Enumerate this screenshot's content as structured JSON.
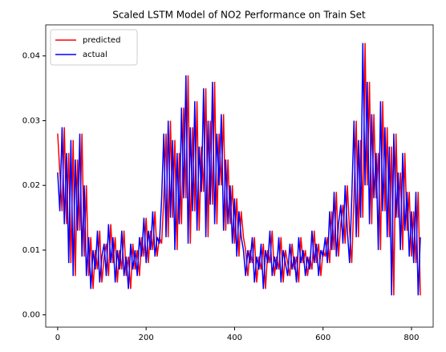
{
  "chart_data": {
    "type": "line",
    "title": "Scaled LSTM Model of NO2 Performance on Train Set",
    "x": [
      0,
      5,
      10,
      15,
      20,
      25,
      30,
      35,
      40,
      45,
      50,
      55,
      60,
      65,
      70,
      75,
      80,
      85,
      90,
      95,
      100,
      105,
      110,
      115,
      120,
      125,
      130,
      135,
      140,
      145,
      150,
      155,
      160,
      165,
      170,
      175,
      180,
      185,
      190,
      195,
      200,
      205,
      210,
      215,
      220,
      225,
      230,
      235,
      240,
      245,
      250,
      255,
      260,
      265,
      270,
      275,
      280,
      285,
      290,
      295,
      300,
      305,
      310,
      315,
      320,
      325,
      330,
      335,
      340,
      345,
      350,
      355,
      360,
      365,
      370,
      375,
      380,
      385,
      390,
      395,
      400,
      405,
      410,
      415,
      420,
      425,
      430,
      435,
      440,
      445,
      450,
      455,
      460,
      465,
      470,
      475,
      480,
      485,
      490,
      495,
      500,
      505,
      510,
      515,
      520,
      525,
      530,
      535,
      540,
      545,
      550,
      555,
      560,
      565,
      570,
      575,
      580,
      585,
      590,
      595,
      600,
      605,
      610,
      615,
      620,
      625,
      630,
      635,
      640,
      645,
      650,
      655,
      660,
      665,
      670,
      675,
      680,
      685,
      690,
      695,
      700,
      705,
      710,
      715,
      720,
      725,
      730,
      735,
      740,
      745,
      750,
      755,
      760,
      765,
      770,
      775,
      780,
      785,
      790,
      795,
      800,
      805,
      810,
      815,
      820
    ],
    "series": [
      {
        "name": "predicted",
        "color": "#ff0000",
        "values": [
          0.028,
          0.022,
          0.016,
          0.029,
          0.014,
          0.025,
          0.008,
          0.027,
          0.006,
          0.024,
          0.013,
          0.028,
          0.009,
          0.02,
          0.006,
          0.012,
          0.004,
          0.01,
          0.007,
          0.013,
          0.005,
          0.009,
          0.011,
          0.006,
          0.014,
          0.008,
          0.012,
          0.005,
          0.01,
          0.007,
          0.013,
          0.006,
          0.009,
          0.004,
          0.011,
          0.007,
          0.01,
          0.006,
          0.012,
          0.009,
          0.015,
          0.008,
          0.013,
          0.01,
          0.016,
          0.009,
          0.012,
          0.011,
          0.018,
          0.028,
          0.012,
          0.03,
          0.015,
          0.027,
          0.01,
          0.025,
          0.014,
          0.032,
          0.018,
          0.037,
          0.011,
          0.029,
          0.016,
          0.033,
          0.013,
          0.026,
          0.019,
          0.035,
          0.012,
          0.03,
          0.017,
          0.036,
          0.014,
          0.028,
          0.02,
          0.031,
          0.013,
          0.024,
          0.014,
          0.02,
          0.011,
          0.018,
          0.009,
          0.016,
          0.012,
          0.01,
          0.006,
          0.01,
          0.008,
          0.012,
          0.005,
          0.009,
          0.007,
          0.011,
          0.004,
          0.01,
          0.008,
          0.013,
          0.006,
          0.009,
          0.007,
          0.012,
          0.005,
          0.01,
          0.008,
          0.006,
          0.011,
          0.007,
          0.009,
          0.005,
          0.012,
          0.008,
          0.01,
          0.006,
          0.009,
          0.007,
          0.013,
          0.008,
          0.011,
          0.006,
          0.01,
          0.009,
          0.012,
          0.008,
          0.016,
          0.01,
          0.019,
          0.009,
          0.014,
          0.017,
          0.011,
          0.02,
          0.013,
          0.008,
          0.018,
          0.03,
          0.012,
          0.027,
          0.015,
          0.042,
          0.02,
          0.036,
          0.014,
          0.031,
          0.018,
          0.025,
          0.01,
          0.033,
          0.016,
          0.029,
          0.012,
          0.026,
          0.003,
          0.028,
          0.015,
          0.022,
          0.01,
          0.025,
          0.013,
          0.019,
          0.009,
          0.016,
          0.008,
          0.019,
          0.003
        ]
      },
      {
        "name": "actual",
        "color": "#0000ff",
        "values": [
          0.022,
          0.016,
          0.029,
          0.014,
          0.025,
          0.008,
          0.027,
          0.006,
          0.024,
          0.013,
          0.028,
          0.009,
          0.02,
          0.006,
          0.012,
          0.004,
          0.01,
          0.007,
          0.013,
          0.005,
          0.009,
          0.011,
          0.006,
          0.014,
          0.008,
          0.012,
          0.005,
          0.01,
          0.007,
          0.013,
          0.006,
          0.009,
          0.004,
          0.011,
          0.007,
          0.01,
          0.006,
          0.012,
          0.009,
          0.015,
          0.008,
          0.013,
          0.01,
          0.016,
          0.009,
          0.012,
          0.011,
          0.018,
          0.028,
          0.012,
          0.03,
          0.015,
          0.027,
          0.01,
          0.025,
          0.014,
          0.032,
          0.018,
          0.037,
          0.011,
          0.029,
          0.016,
          0.033,
          0.013,
          0.026,
          0.019,
          0.035,
          0.012,
          0.03,
          0.017,
          0.036,
          0.014,
          0.028,
          0.02,
          0.031,
          0.013,
          0.024,
          0.014,
          0.02,
          0.011,
          0.018,
          0.009,
          0.016,
          0.012,
          0.01,
          0.006,
          0.01,
          0.008,
          0.012,
          0.005,
          0.009,
          0.007,
          0.011,
          0.004,
          0.01,
          0.008,
          0.013,
          0.006,
          0.009,
          0.007,
          0.012,
          0.005,
          0.01,
          0.008,
          0.006,
          0.011,
          0.007,
          0.009,
          0.005,
          0.012,
          0.008,
          0.01,
          0.006,
          0.009,
          0.007,
          0.013,
          0.008,
          0.011,
          0.006,
          0.01,
          0.009,
          0.012,
          0.008,
          0.016,
          0.01,
          0.019,
          0.009,
          0.014,
          0.017,
          0.011,
          0.02,
          0.013,
          0.008,
          0.018,
          0.03,
          0.012,
          0.027,
          0.015,
          0.042,
          0.02,
          0.036,
          0.014,
          0.031,
          0.018,
          0.025,
          0.01,
          0.033,
          0.016,
          0.029,
          0.012,
          0.026,
          0.003,
          0.028,
          0.015,
          0.022,
          0.01,
          0.025,
          0.013,
          0.019,
          0.009,
          0.016,
          0.008,
          0.019,
          0.003,
          0.012
        ]
      }
    ],
    "xlim": [
      -27,
      849
    ],
    "ylim": [
      -0.0019,
      0.0448
    ],
    "xticks": [
      0,
      200,
      400,
      600,
      800
    ],
    "yticks": [
      {
        "value": 0,
        "label": "0.00"
      },
      {
        "value": 0.01,
        "label": "0.01"
      },
      {
        "value": 0.02,
        "label": "0.02"
      },
      {
        "value": 0.03,
        "label": "0.03"
      },
      {
        "value": 0.04,
        "label": "0.04"
      }
    ],
    "legend": "upper left"
  }
}
